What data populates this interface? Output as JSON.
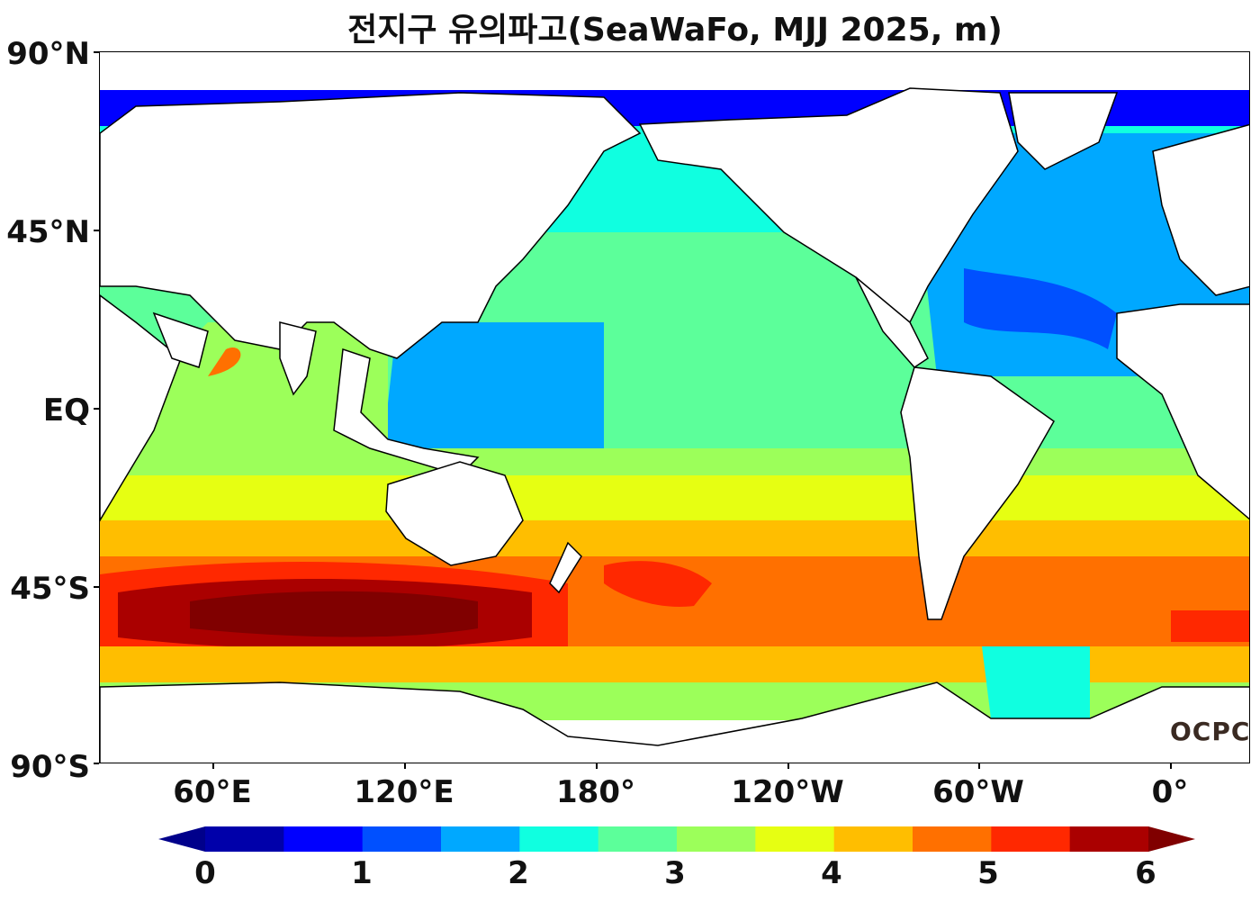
{
  "title": "전지구 유의파고(SeaWaFo, MJJ 2025, m)",
  "y_axis_labels": [
    "90°N",
    "45°N",
    "EQ",
    "45°S",
    "90°S"
  ],
  "x_axis_labels": [
    "60°E",
    "120°E",
    "180°",
    "120°W",
    "60°W",
    "0°"
  ],
  "colorbar": {
    "tick_labels": [
      "0",
      "1",
      "2",
      "3",
      "4",
      "5",
      "6"
    ],
    "colors": [
      "#0000aa",
      "#0000ff",
      "#0050ff",
      "#00a8ff",
      "#10ffe0",
      "#5cff9a",
      "#9cff5a",
      "#e6ff12",
      "#ffbe00",
      "#ff7000",
      "#ff2800",
      "#aa0000"
    ],
    "under_color": "#00008b",
    "over_color": "#800000"
  },
  "logo": "OCPC",
  "land_color": "#ffffff",
  "coast_color": "#000000"
}
